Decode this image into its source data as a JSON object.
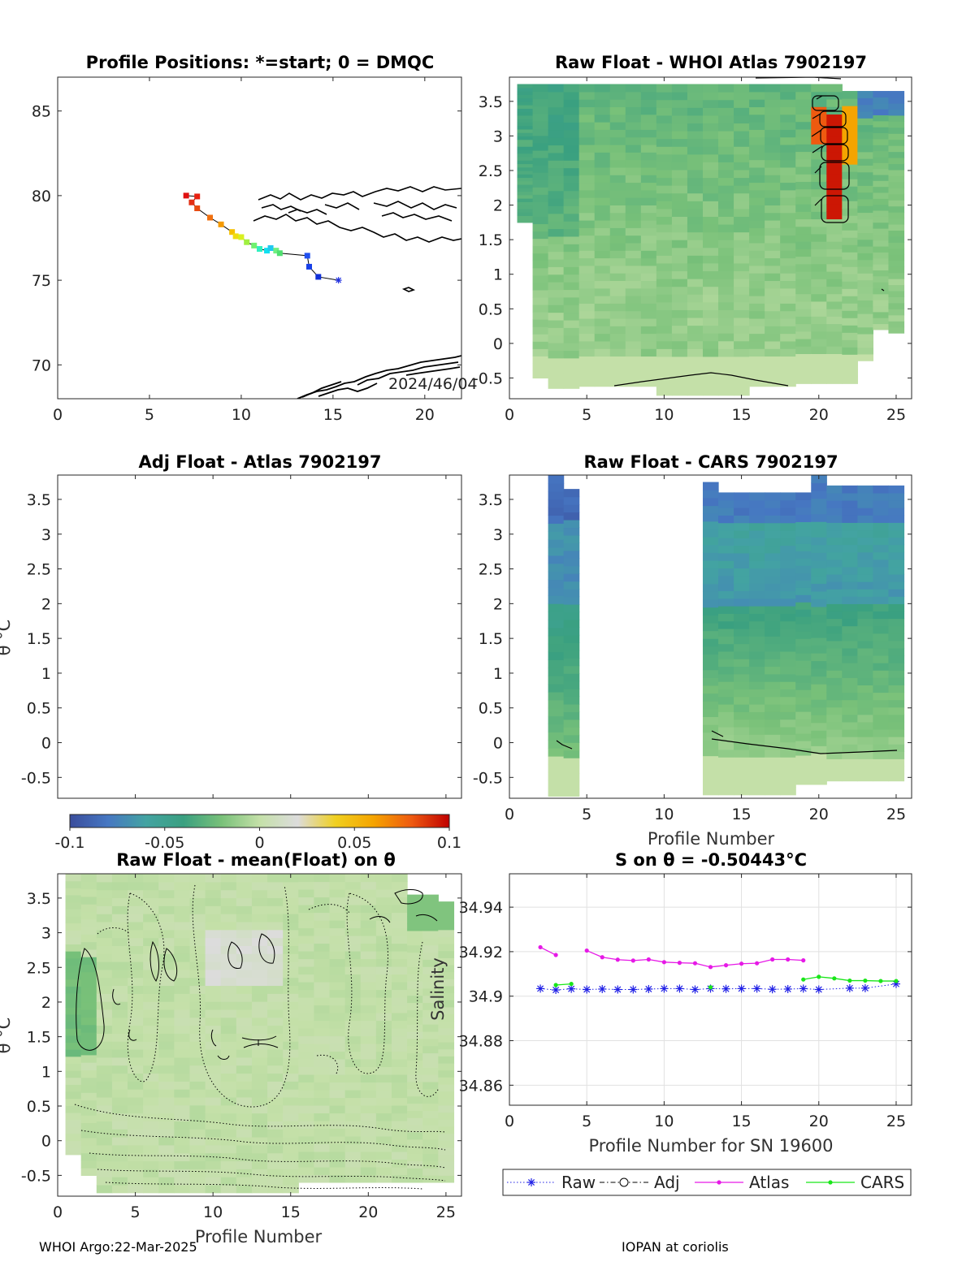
{
  "footer": {
    "left": "WHOI Argo:22-Mar-2025",
    "right": "IOPAN at coriolis"
  },
  "colorbar": {
    "ticks": [
      "-0.1",
      "-0.05",
      "0",
      "0.05",
      "0.1"
    ],
    "range": [
      -0.1,
      0.1
    ],
    "colors": [
      "#3a4d9c",
      "#4677c2",
      "#43a3a2",
      "#3aa080",
      "#79c179",
      "#c4e0a8",
      "#dcdcdc",
      "#f0d020",
      "#f5a400",
      "#ee5a10",
      "#c00000"
    ]
  },
  "chart_data": [
    {
      "id": "map",
      "type": "scatter",
      "title": "Profile Positions: *=start; 0 = DMQC",
      "xlim": [
        0,
        22
      ],
      "ylim": [
        68,
        87
      ],
      "xticks": [
        "0",
        "5",
        "10",
        "15",
        "20"
      ],
      "yticks": [
        "70",
        "75",
        "80",
        "85"
      ],
      "track_x": [
        7.0,
        7.6,
        7.3,
        7.6,
        8.3,
        8.9,
        9.5,
        9.7,
        10.0,
        10.3,
        10.7,
        11.0,
        11.4,
        11.6,
        11.9,
        12.1,
        13.6,
        13.7,
        14.2,
        15.3
      ],
      "track_y": [
        80.0,
        79.95,
        79.6,
        79.25,
        78.7,
        78.3,
        77.85,
        77.6,
        77.55,
        77.25,
        77.05,
        76.85,
        76.75,
        76.9,
        76.75,
        76.6,
        76.45,
        75.8,
        75.2,
        75.0
      ],
      "annotation": "2024/46/04"
    },
    {
      "id": "whoi-atlas",
      "type": "heatmap",
      "title": "Raw Float - WHOI Atlas  7902197",
      "xlim": [
        0,
        26
      ],
      "ylim": [
        -0.8,
        3.85
      ],
      "xticks": [
        "0",
        "5",
        "10",
        "15",
        "20",
        "25"
      ],
      "yticks": [
        "-0.5",
        "0",
        "0.5",
        "1",
        "1.5",
        "2",
        "2.5",
        "3",
        "3.5"
      ]
    },
    {
      "id": "adj-atlas",
      "type": "heatmap",
      "title": "Adj Float - Atlas  7902197",
      "ylabel": "θ °C",
      "xlim": [
        0,
        26
      ],
      "ylim": [
        -0.8,
        3.85
      ],
      "yticks": [
        "-0.5",
        "0",
        "0.5",
        "1",
        "1.5",
        "2",
        "2.5",
        "3",
        "3.5"
      ]
    },
    {
      "id": "cars",
      "type": "heatmap",
      "title": "Raw Float - CARS  7902197",
      "xlabel": "Profile Number",
      "xlim": [
        0,
        26
      ],
      "ylim": [
        -0.8,
        3.85
      ],
      "xticks": [
        "0",
        "5",
        "10",
        "15",
        "20",
        "25"
      ],
      "yticks": [
        "-0.5",
        "0",
        "0.5",
        "1",
        "1.5",
        "2",
        "2.5",
        "3",
        "3.5"
      ]
    },
    {
      "id": "mean",
      "type": "heatmap",
      "title": "Raw Float - mean(Float) on θ",
      "xlabel": "Profile Number",
      "ylabel": "θ °C",
      "xlim": [
        0,
        26
      ],
      "ylim": [
        -0.8,
        3.85
      ],
      "xticks": [
        "0",
        "5",
        "10",
        "15",
        "20",
        "25"
      ],
      "yticks": [
        "-0.5",
        "0",
        "0.5",
        "1",
        "1.5",
        "2",
        "2.5",
        "3",
        "3.5"
      ]
    },
    {
      "id": "salinity",
      "type": "line",
      "title": "S on θ = -0.50443°C",
      "xlabel": "Profile Number for SN 19600",
      "ylabel": "Salinity",
      "xlim": [
        0,
        26
      ],
      "ylim": [
        34.851,
        34.955
      ],
      "xticks": [
        "0",
        "5",
        "10",
        "15",
        "20",
        "25"
      ],
      "yticks": [
        "34.86",
        "34.88",
        "34.9",
        "34.92",
        "34.94"
      ],
      "grid": true,
      "legend_position": "bottom",
      "series": [
        {
          "name": "Raw",
          "color": "#1f1fe6",
          "x": [
            2,
            3,
            4,
            5,
            6,
            7,
            8,
            9,
            10,
            11,
            12,
            13,
            14,
            15,
            16,
            17,
            18,
            19,
            20,
            22,
            23,
            25
          ],
          "y": [
            34.9034,
            34.9028,
            34.9033,
            34.903,
            34.9032,
            34.903,
            34.903,
            34.9032,
            34.9034,
            34.9034,
            34.903,
            34.9034,
            34.9033,
            34.9034,
            34.9034,
            34.9031,
            34.9032,
            34.9034,
            34.903,
            34.9036,
            34.9036,
            34.9055
          ]
        },
        {
          "name": "Adj",
          "color": "#000000",
          "x": [],
          "y": []
        },
        {
          "name": "Atlas",
          "color": "#e619e6",
          "x": [
            2,
            3,
            5,
            6,
            7,
            8,
            9,
            10,
            11,
            12,
            13,
            14,
            15,
            16,
            17,
            18,
            19
          ],
          "y": [
            34.922,
            34.9185,
            34.9205,
            34.9175,
            34.9164,
            34.916,
            34.9165,
            34.9153,
            34.915,
            34.9148,
            34.9131,
            34.9139,
            34.9146,
            34.9148,
            34.9165,
            34.9165,
            34.9161
          ]
        },
        {
          "name": "CARS",
          "color": "#19e619",
          "x": [
            3,
            4,
            13,
            19,
            20,
            21,
            22,
            23,
            24,
            25
          ],
          "y": [
            34.905,
            34.9055,
            34.904,
            34.9075,
            34.9087,
            34.908,
            34.907,
            34.907,
            34.9068,
            34.9068
          ]
        }
      ]
    }
  ]
}
